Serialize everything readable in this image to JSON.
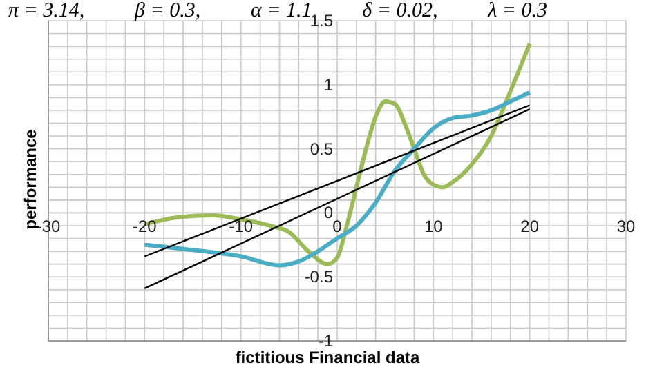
{
  "chart_data": {
    "type": "line",
    "xlabel": "fictitious Financial data",
    "ylabel": "performance",
    "annotations": [
      "π = 3.14,",
      "β = 0.3,",
      "α = 1.1",
      "δ = 0.02,",
      "λ = 0.3"
    ],
    "xlim": [
      -30,
      30
    ],
    "ylim": [
      -1,
      1.5
    ],
    "xticks": [
      -30,
      {
        "value": -28,
        "label": null
      },
      {
        "value": -26,
        "label": null
      },
      {
        "value": -24,
        "label": null
      },
      {
        "value": -22,
        "label": null
      },
      -20,
      {
        "value": -18,
        "label": null
      },
      {
        "value": -16,
        "label": null
      },
      {
        "value": -14,
        "label": null
      },
      {
        "value": -12,
        "label": null
      },
      -10,
      {
        "value": -8,
        "label": null
      },
      {
        "value": -6,
        "label": null
      },
      {
        "value": -4,
        "label": null
      },
      {
        "value": -2,
        "label": null
      },
      0,
      {
        "value": 2,
        "label": null
      },
      {
        "value": 4,
        "label": null
      },
      {
        "value": 6,
        "label": null
      },
      {
        "value": 8,
        "label": null
      },
      10,
      {
        "value": 12,
        "label": null
      },
      {
        "value": 14,
        "label": null
      },
      {
        "value": 16,
        "label": null
      },
      {
        "value": 18,
        "label": null
      },
      20,
      {
        "value": 22,
        "label": null
      },
      {
        "value": 24,
        "label": null
      },
      {
        "value": 26,
        "label": null
      },
      {
        "value": 28,
        "label": null
      },
      30
    ],
    "yticks": [
      -1,
      {
        "value": -0.9,
        "label": null
      },
      {
        "value": -0.8,
        "label": null
      },
      {
        "value": -0.7,
        "label": null
      },
      {
        "value": -0.6,
        "label": null
      },
      -0.5,
      {
        "value": -0.4,
        "label": null
      },
      {
        "value": -0.3,
        "label": null
      },
      {
        "value": -0.2,
        "label": null
      },
      {
        "value": -0.1,
        "label": null
      },
      0,
      {
        "value": 0.1,
        "label": null
      },
      {
        "value": 0.2,
        "label": null
      },
      {
        "value": 0.3,
        "label": null
      },
      {
        "value": 0.4,
        "label": null
      },
      0.5,
      {
        "value": 0.6,
        "label": null
      },
      {
        "value": 0.7,
        "label": null
      },
      {
        "value": 0.8,
        "label": null
      },
      {
        "value": 0.9,
        "label": null
      },
      1,
      {
        "value": 1.1,
        "label": null
      },
      {
        "value": 1.2,
        "label": null
      },
      {
        "value": 1.3,
        "label": null
      },
      {
        "value": 1.4,
        "label": null
      },
      1.5
    ],
    "grid": true,
    "marker": "none",
    "line_style": "solid",
    "series": [
      {
        "color": "#9bbb59",
        "x": [
          -20,
          -16,
          -13,
          -10,
          -7,
          -5,
          -3,
          -1,
          0,
          1,
          2,
          3,
          4,
          5,
          6,
          7,
          8,
          9,
          10,
          11,
          12,
          14,
          16,
          18,
          20
        ],
        "values": [
          -0.09,
          -0.03,
          -0.02,
          -0.05,
          -0.1,
          -0.15,
          -0.3,
          -0.4,
          -0.35,
          -0.1,
          0.2,
          0.5,
          0.75,
          0.87,
          0.85,
          0.7,
          0.5,
          0.3,
          0.22,
          0.2,
          0.24,
          0.38,
          0.6,
          0.95,
          1.32
        ]
      },
      {
        "color": "#4bacc6",
        "x": [
          -20,
          -15,
          -10,
          -6,
          -4,
          -2,
          0,
          2,
          4,
          6,
          8,
          10,
          12,
          14,
          16,
          18,
          20
        ],
        "values": [
          -0.25,
          -0.29,
          -0.34,
          -0.41,
          -0.38,
          -0.3,
          -0.2,
          -0.1,
          0.08,
          0.33,
          0.5,
          0.66,
          0.74,
          0.76,
          0.8,
          0.87,
          0.94
        ]
      },
      {
        "color": "#000000",
        "x": [
          -20,
          20
        ],
        "values": [
          -0.34,
          0.84
        ]
      },
      {
        "color": "#000000",
        "x": [
          -20,
          20
        ],
        "values": [
          -0.59,
          0.81
        ]
      }
    ]
  }
}
